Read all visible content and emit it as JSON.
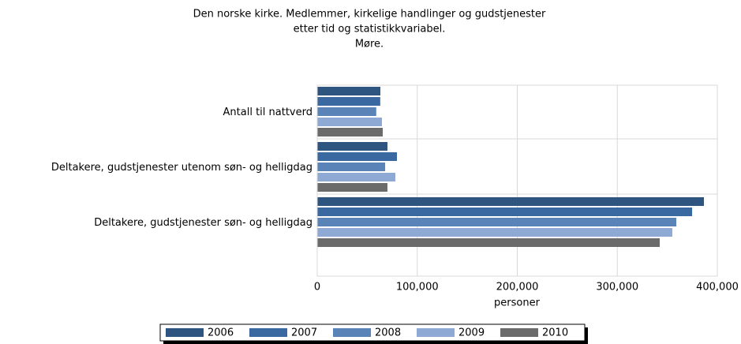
{
  "chart_data": {
    "type": "hbar",
    "title": [
      "Den norske kirke. Medlemmer, kirkelige handlinger og gudstjenester",
      "etter tid og statistikkvariabel.",
      "Møre."
    ],
    "categories": [
      "Antall til nattverd",
      "Deltakere, gudstjenester utenom søn- og helligdag",
      "Deltakere, gudstjenester søn- og helligdag"
    ],
    "series": [
      {
        "name": "2006",
        "color": "#2e5580",
        "values": [
          63100,
          70200,
          386600
        ]
      },
      {
        "name": "2007",
        "color": "#3a68a0",
        "values": [
          63000,
          79700,
          374800
        ]
      },
      {
        "name": "2008",
        "color": "#5a84b8",
        "values": [
          59000,
          67900,
          359000
        ]
      },
      {
        "name": "2009",
        "color": "#8eaad4",
        "values": [
          64700,
          78100,
          355000
        ]
      },
      {
        "name": "2010",
        "color": "#6b6b6b",
        "values": [
          65500,
          70200,
          342400
        ]
      }
    ],
    "xlabel": "personer",
    "xlim": [
      0,
      400000
    ],
    "xticks": [
      0,
      {
        "value": 100000,
        "label": "100,000"
      },
      {
        "value": 200000,
        "label": "200,000"
      },
      {
        "value": 300000,
        "label": "300,000"
      },
      {
        "value": 400000,
        "label": "400,000"
      }
    ],
    "grid": true,
    "legend": "bottom"
  }
}
